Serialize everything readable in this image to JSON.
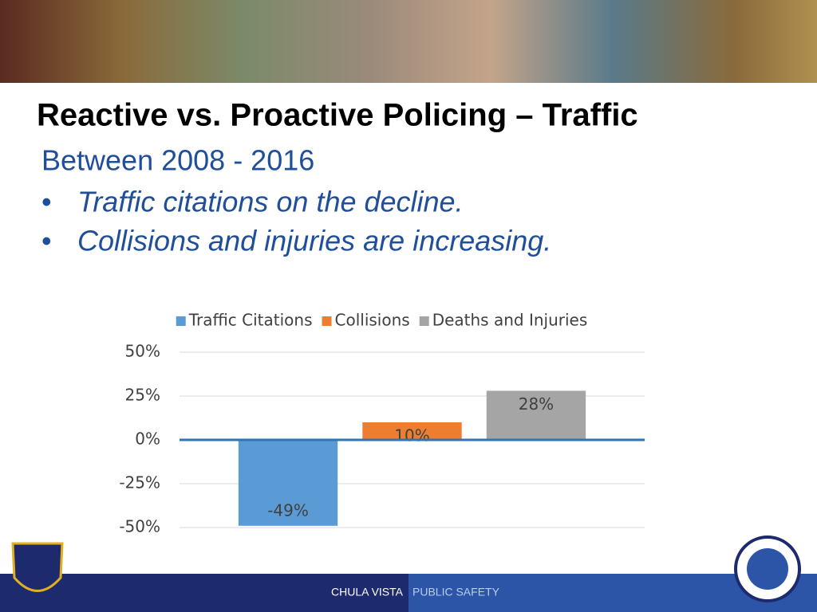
{
  "slide": {
    "title": "Reactive vs. Proactive Policing – Traffic",
    "subtitle": "Between 2008 - 2016",
    "bullets": [
      "Traffic citations on the decline.",
      "Collisions and injuries are increasing."
    ],
    "footer": [
      "CHULA VISTA",
      "PUBLIC SAFETY"
    ]
  },
  "chart_data": {
    "type": "bar",
    "categories": [
      null
    ],
    "series": [
      {
        "name": "Traffic Citations",
        "color": "#5b9bd5",
        "values": [
          -49
        ],
        "value_labels": [
          "-49%"
        ]
      },
      {
        "name": "Collisions",
        "color": "#ed7d31",
        "values": [
          10
        ],
        "value_labels": [
          "10%"
        ]
      },
      {
        "name": "Deaths and Injuries",
        "color": "#a5a5a5",
        "values": [
          28
        ],
        "value_labels": [
          "28%"
        ]
      }
    ],
    "ylim": [
      -50,
      50
    ],
    "yticks": [
      {
        "value": -50,
        "label": "-50%"
      },
      {
        "value": -25,
        "label": "-25%"
      },
      {
        "value": 0,
        "label": "0%"
      },
      {
        "value": 25,
        "label": "25%"
      },
      {
        "value": 50,
        "label": "50%"
      }
    ],
    "grid": true,
    "legend": "top"
  }
}
